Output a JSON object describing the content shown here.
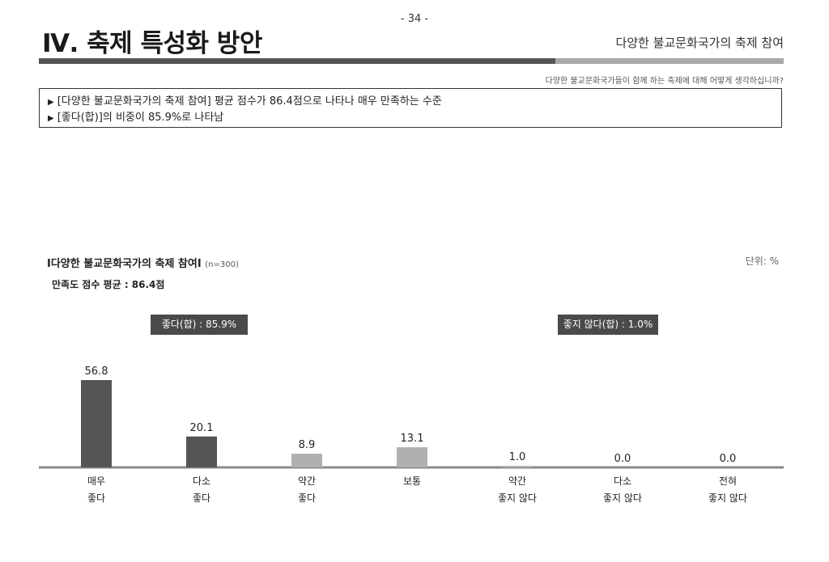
{
  "page": {
    "number": "- 34 -",
    "chapter_title": "Ⅳ. 축제 특성화 방안",
    "section_subtitle": "다양한 불교문화국가의 축제 참여",
    "question": "다양한 불교문화국가들이 함께 하는 축제에 대해 어떻게 생각하십니까?"
  },
  "summary": {
    "lines": [
      "[다양한 불교문화국가의 축제 참여] 평균 점수가 86.4점으로 나타나 매우 만족하는 수준",
      "[좋다(합)]의 비중이 85.9%로 나타남"
    ]
  },
  "chart": {
    "title": "Ⅰ다양한 불교문화국가의 축제 참여Ⅰ",
    "sample": "(n=300)",
    "unit": "단위: %",
    "mean_label": "만족도 점수 평균 : 86.4점",
    "positive_badge": "좋다(합) : 85.9%",
    "negative_badge": "좋지 않다(합) : 1.0%"
  },
  "colors": {
    "bar_dark": "#555555",
    "bar_light": "#b0b0b0",
    "baseline": "#8a8a8a",
    "badge": "#4a4a4a"
  },
  "chart_data": {
    "type": "bar",
    "categories": [
      [
        "매우",
        "좋다"
      ],
      [
        "다소",
        "좋다"
      ],
      [
        "약간",
        "좋다"
      ],
      [
        "보통"
      ],
      [
        "약간",
        "좋지 않다"
      ],
      [
        "다소",
        "좋지 않다"
      ],
      [
        "전혀",
        "좋지 않다"
      ]
    ],
    "values": [
      56.8,
      20.1,
      8.9,
      13.1,
      1.0,
      0.0,
      0.0
    ],
    "value_labels": [
      "56.8",
      "20.1",
      "8.9",
      "13.1",
      "1.0",
      "0.0",
      "0.0"
    ],
    "bar_tone": [
      "dark",
      "dark",
      "light",
      "light",
      "light",
      "light",
      "light"
    ],
    "ylim": [
      0,
      60
    ],
    "grid": false,
    "legend": "none"
  }
}
